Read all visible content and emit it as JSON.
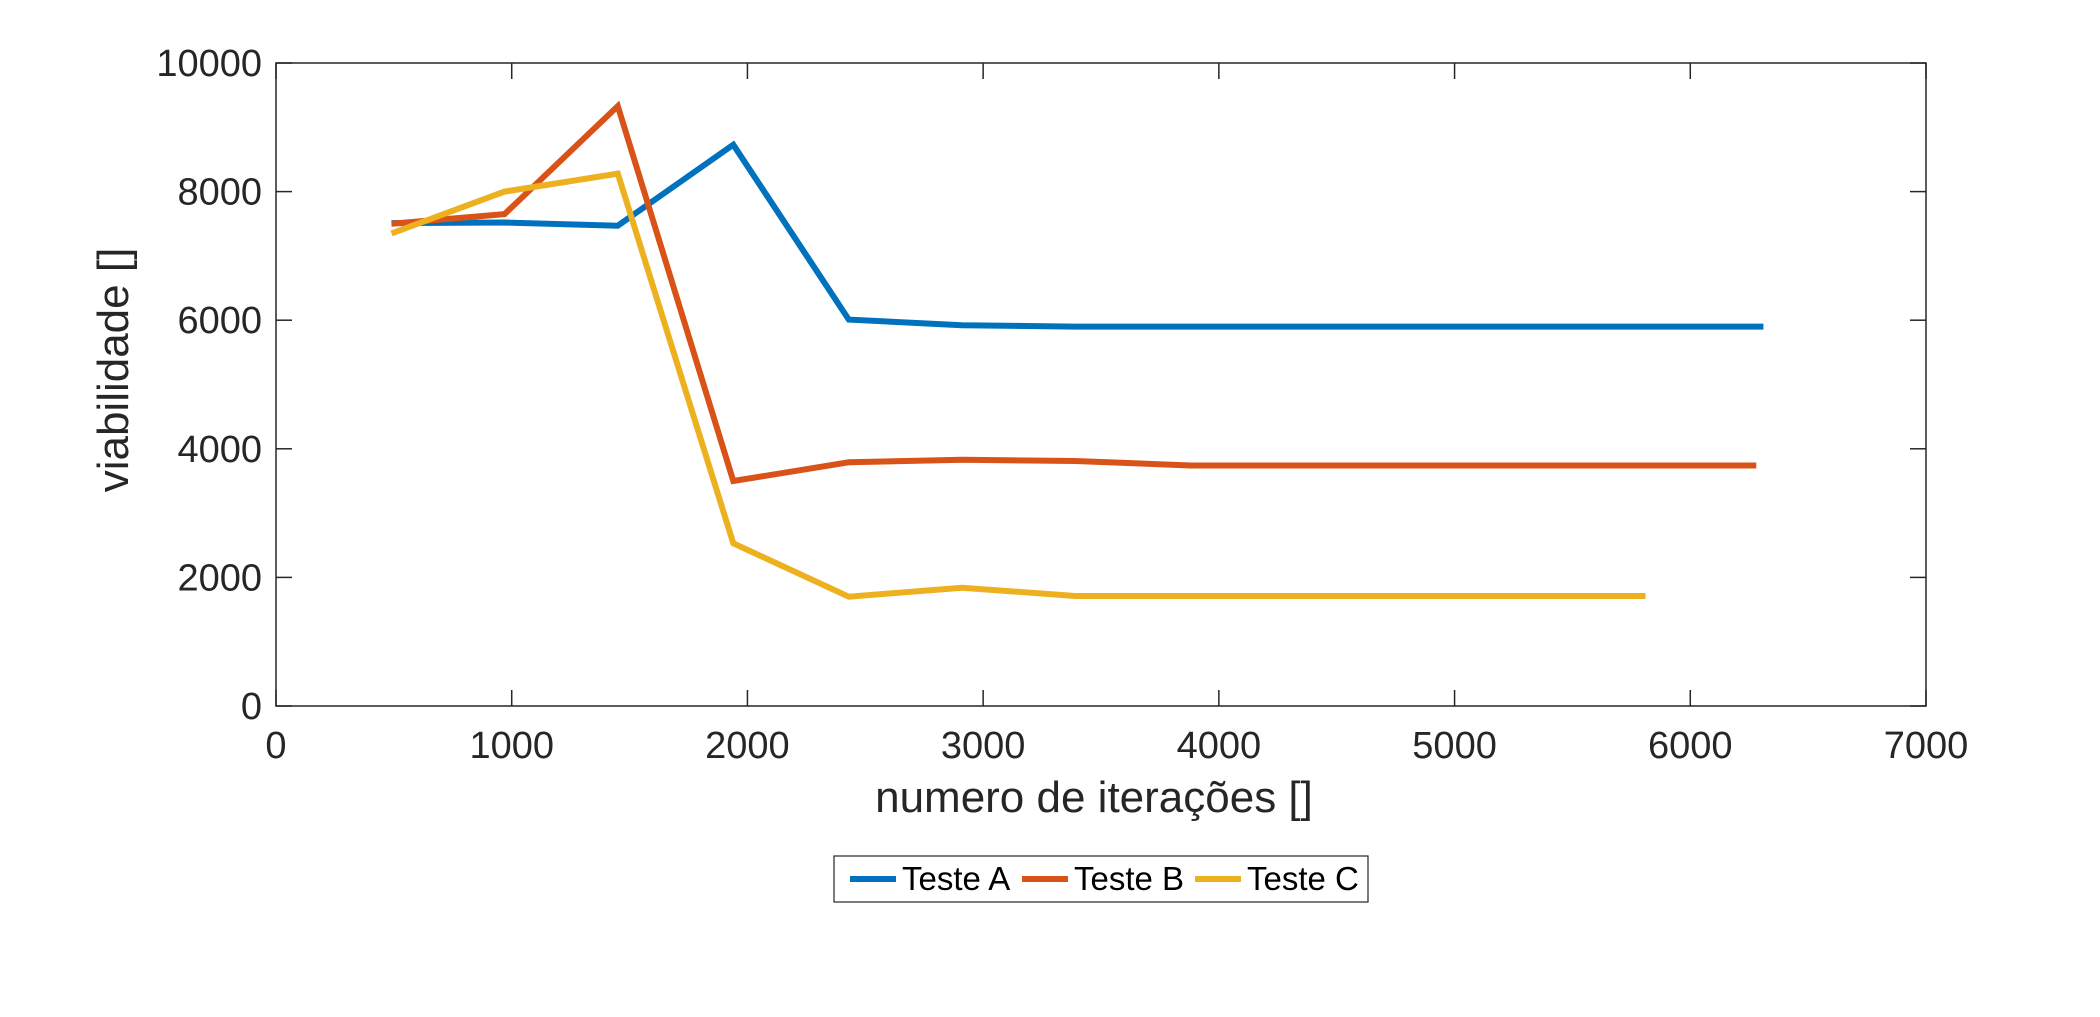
{
  "chart_data": {
    "type": "line",
    "title": "",
    "xlabel": "numero de iterações []",
    "ylabel": "viabilidade []",
    "xlim": [
      0,
      7000
    ],
    "ylim": [
      0,
      10000
    ],
    "x_ticks": [
      0,
      1000,
      2000,
      3000,
      4000,
      5000,
      6000,
      7000
    ],
    "y_ticks": [
      0,
      2000,
      4000,
      6000,
      8000,
      10000
    ],
    "x_tick_labels": [
      "0",
      "1000",
      "2000",
      "3000",
      "4000",
      "5000",
      "6000",
      "7000"
    ],
    "y_tick_labels": [
      "0",
      "2000",
      "4000",
      "6000",
      "8000",
      "10000"
    ],
    "grid": false,
    "legend_position": "bottom-center-outside",
    "series": [
      {
        "name": "Teste A",
        "color": "#0072BD",
        "x": [
          490,
          970,
          1450,
          1940,
          2430,
          2910,
          3390,
          3880,
          4360,
          4850,
          5330,
          5820,
          6310
        ],
        "y": [
          7510,
          7520,
          7470,
          8730,
          6010,
          5920,
          5900,
          5900,
          5900,
          5900,
          5900,
          5900,
          5900
        ]
      },
      {
        "name": "Teste B",
        "color": "#D95319",
        "x": [
          490,
          970,
          1450,
          1940,
          2430,
          2910,
          3390,
          3880,
          4360,
          4850,
          5330,
          5820,
          6280
        ],
        "y": [
          7500,
          7650,
          9330,
          3500,
          3790,
          3830,
          3810,
          3740,
          3740,
          3740,
          3740,
          3740,
          3740
        ]
      },
      {
        "name": "Teste C",
        "color": "#EDB120",
        "x": [
          490,
          970,
          1450,
          1940,
          2430,
          2910,
          3390,
          3880,
          4360,
          4850,
          5330,
          5810
        ],
        "y": [
          7350,
          8000,
          8280,
          2530,
          1700,
          1840,
          1710,
          1710,
          1710,
          1710,
          1710,
          1710
        ]
      }
    ]
  }
}
